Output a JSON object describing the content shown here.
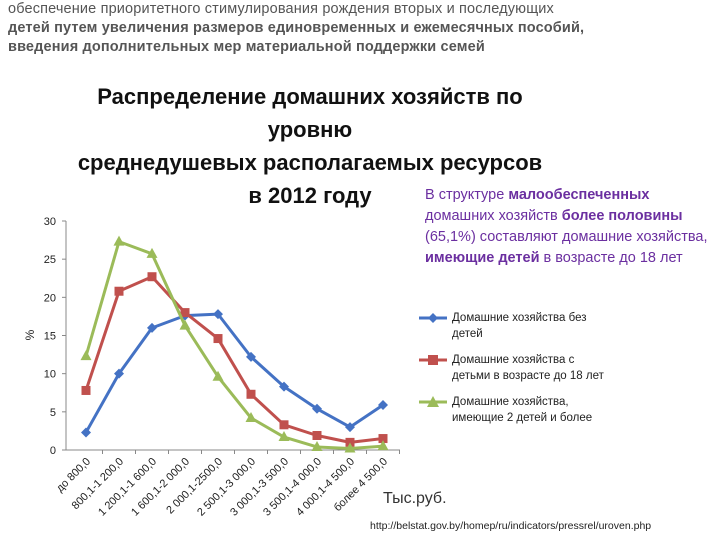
{
  "heading": {
    "line1": "обеспечение приоритетного стимулирования рождения вторых и последующих",
    "line2": "детей путем увеличения размеров единовременных и ежемесячных пособий,",
    "line3": "введения дополнительных мер материальной поддержки семей"
  },
  "callout": {
    "p1": "В структуре ",
    "p2": "малообеспеченных",
    "p3": " домашних хозяйств ",
    "p4": "более половины",
    "p5": " (65,1%) составляют домашние хозяйства, ",
    "p6": "имеющие детей",
    "p7": " в возрасте до 18 лет"
  },
  "unit_note": "Тыс.руб.",
  "source": "http://belstat.gov.by/homep/ru/indicators/pressrel/uroven.php",
  "chart_data": {
    "type": "line",
    "title_lines": [
      "Распределение домашних хозяйств по",
      "уровню",
      "среднедушевых располагаемых ресурсов",
      "в 2012 году"
    ],
    "ylabel": "%",
    "ylim": [
      0,
      30
    ],
    "yticks": [
      0,
      5,
      10,
      15,
      20,
      25,
      30
    ],
    "grid": false,
    "legend_position": "right",
    "categories": [
      "до 800,0",
      "800,1-1 200,0",
      "1 200,1-1 600,0",
      "1 600,1-2 000,0",
      "2 000,1-2500,0",
      "2 500,1-3 000,0",
      "3 000,1-3 500,0",
      "3 500,1-4 000,0",
      "4 000,1-4 500,0",
      "более 4 500,0"
    ],
    "series": [
      {
        "name": "Домашние хозяйства без детей",
        "color": "#4472c4",
        "marker": "diamond",
        "values": [
          2.3,
          10,
          16,
          17.6,
          17.8,
          12.2,
          8.3,
          5.4,
          3.0,
          5.9
        ]
      },
      {
        "name": "Домашние хозяйства с детьми в возрасте до 18 лет",
        "color": "#c0504d",
        "marker": "square",
        "values": [
          7.8,
          20.8,
          22.7,
          18,
          14.6,
          7.3,
          3.3,
          1.9,
          1.0,
          1.5
        ]
      },
      {
        "name": "Домашние хозяйства, имеющие 2 детей и более",
        "color": "#9bbb59",
        "marker": "triangle",
        "values": [
          12.3,
          27.3,
          25.7,
          16.3,
          9.6,
          4.2,
          1.7,
          0.4,
          0.2,
          0.5
        ]
      }
    ],
    "legend_lines": [
      [
        "Домашние хозяйства без",
        "детей"
      ],
      [
        "Домашние хозяйства с",
        "детьми в возрасте до 18 лет"
      ],
      [
        "Домашние хозяйства,",
        "имеющие 2 детей и более"
      ]
    ]
  }
}
